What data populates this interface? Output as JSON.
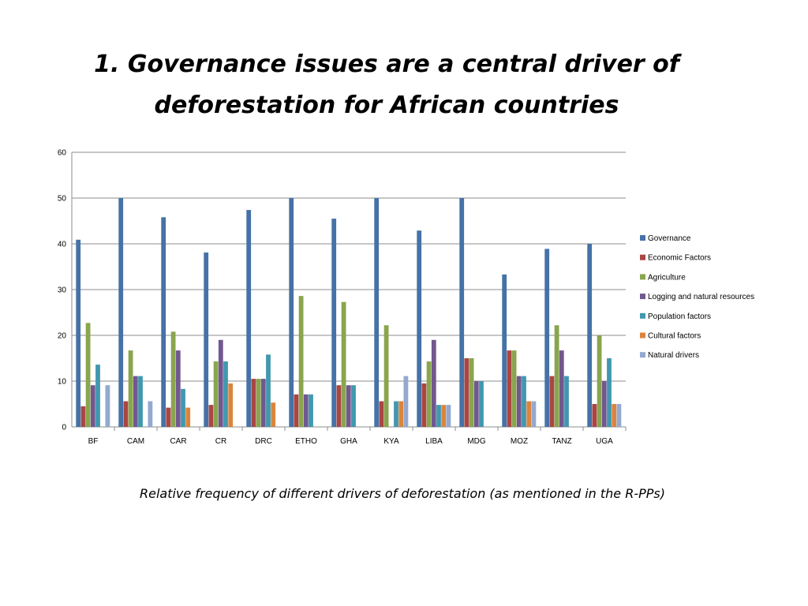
{
  "slide": {
    "title_line1": "1. Governance issues are a central driver of",
    "title_line2": "deforestation for African countries",
    "caption": "Relative frequency of different drivers of deforestation (as mentioned in the R-PPs)"
  },
  "chart_data": {
    "type": "bar",
    "title": "",
    "xlabel": "",
    "ylabel": "",
    "ylim": [
      0,
      60
    ],
    "yticks": [
      0,
      10,
      20,
      30,
      40,
      50,
      60
    ],
    "grid": true,
    "legend_position": "right",
    "categories": [
      "BF",
      "CAM",
      "CAR",
      "CR",
      "DRC",
      "ETHO",
      "GHA",
      "KYA",
      "LIBA",
      "MDG",
      "MOZ",
      "TANZ",
      "UGA"
    ],
    "series": [
      {
        "name": "Governance",
        "color": "#4572A7",
        "values": [
          40.9,
          50,
          45.8,
          38.1,
          47.4,
          50,
          45.5,
          50,
          42.9,
          50,
          33.3,
          38.9,
          40
        ]
      },
      {
        "name": "Economic Factors",
        "color": "#AA4643",
        "values": [
          4.5,
          5.6,
          4.2,
          4.8,
          10.5,
          7.1,
          9.1,
          5.6,
          9.5,
          15,
          16.7,
          11.1,
          5
        ]
      },
      {
        "name": "Agriculture",
        "color": "#89A54E",
        "values": [
          22.7,
          16.7,
          20.8,
          14.3,
          10.5,
          28.6,
          27.3,
          22.2,
          14.3,
          15,
          16.7,
          22.2,
          20
        ]
      },
      {
        "name": "Logging and natural resources",
        "color": "#71588F",
        "values": [
          9.1,
          11.1,
          16.7,
          19,
          10.5,
          7.1,
          9.1,
          0,
          19,
          10,
          11.1,
          16.7,
          10
        ]
      },
      {
        "name": "Population factors",
        "color": "#4198AF",
        "values": [
          13.6,
          11.1,
          8.3,
          14.3,
          15.8,
          7.1,
          9.1,
          5.6,
          4.8,
          10,
          11.1,
          11.1,
          15
        ]
      },
      {
        "name": "Cultural factors",
        "color": "#DB843D",
        "values": [
          0,
          0,
          4.2,
          9.5,
          5.3,
          0,
          0,
          5.6,
          4.8,
          0,
          5.6,
          0,
          5
        ]
      },
      {
        "name": "Natural drivers",
        "color": "#93A9CF",
        "values": [
          9.1,
          5.6,
          0,
          0,
          0,
          0,
          0,
          11.1,
          4.8,
          0,
          5.6,
          0,
          5
        ]
      }
    ]
  }
}
